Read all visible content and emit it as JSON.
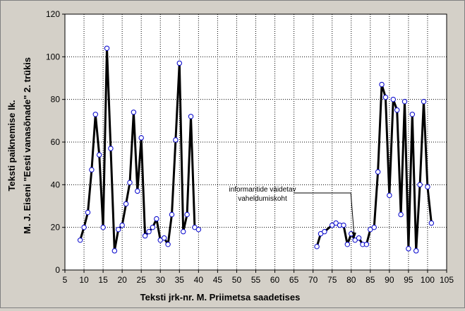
{
  "chart_data": {
    "type": "line",
    "xlabel": "Teksti jrk-nr. M. Priimetsa saadetises",
    "ylabel_line1": "Teksti paiknemise lk.",
    "ylabel_line2": "M. J. Eiseni \"Eesti vanasõnade\" 2. trükis",
    "xlim": [
      5,
      105
    ],
    "ylim": [
      0,
      120
    ],
    "xticks": [
      5,
      10,
      15,
      20,
      25,
      30,
      35,
      40,
      45,
      50,
      55,
      60,
      65,
      70,
      75,
      80,
      85,
      90,
      95,
      100,
      105
    ],
    "yticks": [
      0,
      20,
      40,
      60,
      80,
      100,
      120
    ],
    "grid": true,
    "series": [
      {
        "segment": 1,
        "points": [
          [
            9,
            14
          ],
          [
            10,
            20
          ],
          [
            11,
            27
          ],
          [
            12,
            47
          ],
          [
            13,
            73
          ],
          [
            14,
            54
          ],
          [
            15,
            20
          ],
          [
            16,
            104
          ],
          [
            17,
            57
          ],
          [
            18,
            9
          ],
          [
            19,
            19
          ],
          [
            20,
            21
          ],
          [
            21,
            31
          ],
          [
            22,
            41
          ],
          [
            23,
            74
          ],
          [
            24,
            37
          ],
          [
            25,
            62
          ],
          [
            26,
            16
          ],
          [
            27,
            18
          ],
          [
            28,
            20
          ],
          [
            29,
            24
          ],
          [
            30,
            14
          ],
          [
            31,
            15
          ],
          [
            32,
            12
          ],
          [
            33,
            26
          ],
          [
            34,
            61
          ],
          [
            35,
            97
          ],
          [
            36,
            18
          ],
          [
            37,
            26
          ],
          [
            38,
            72
          ],
          [
            39,
            20
          ],
          [
            40,
            19
          ]
        ]
      },
      {
        "segment": 2,
        "points": [
          [
            71,
            11
          ],
          [
            72,
            17
          ],
          [
            73,
            18
          ],
          [
            75,
            21
          ],
          [
            76,
            22
          ],
          [
            77,
            21
          ],
          [
            78,
            21
          ],
          [
            79,
            12
          ],
          [
            80,
            17
          ],
          [
            81,
            14
          ],
          [
            82,
            15
          ],
          [
            83,
            12
          ],
          [
            84,
            12
          ],
          [
            85,
            19
          ],
          [
            86,
            20
          ],
          [
            87,
            46
          ],
          [
            88,
            87
          ],
          [
            89,
            81
          ],
          [
            90,
            35
          ],
          [
            91,
            80
          ],
          [
            92,
            75
          ],
          [
            93,
            26
          ],
          [
            94,
            79
          ],
          [
            95,
            10
          ],
          [
            96,
            73
          ],
          [
            97,
            9
          ],
          [
            98,
            40
          ],
          [
            99,
            79
          ],
          [
            100,
            39
          ],
          [
            101,
            22
          ]
        ]
      }
    ],
    "annotation": {
      "line1": "informantide väidetav",
      "line2": "vaheldumiskoht",
      "target_x": 81,
      "target_y": 14
    }
  }
}
